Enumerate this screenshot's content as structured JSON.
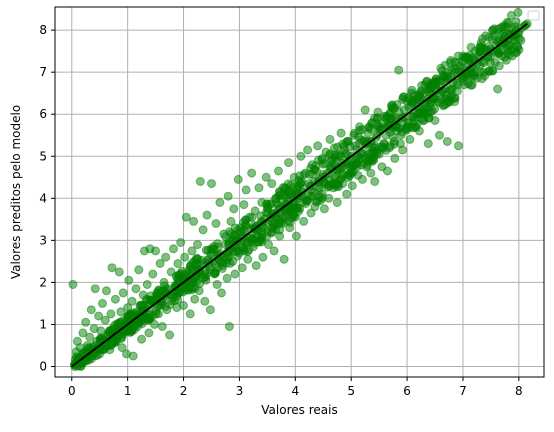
{
  "chart_data": {
    "type": "scatter",
    "title": "",
    "xlabel": "Valores reais",
    "ylabel": "Valores preditos pelo modelo",
    "xlim": [
      -0.3,
      8.45
    ],
    "ylim": [
      -0.25,
      8.55
    ],
    "xticks": [
      "0",
      "1",
      "2",
      "3",
      "4",
      "5",
      "6",
      "7",
      "8"
    ],
    "yticks": [
      "0",
      "1",
      "2",
      "3",
      "4",
      "5",
      "6",
      "7",
      "8"
    ],
    "grid": true,
    "legend": {
      "placement": "top-right",
      "entries": []
    },
    "colors": {
      "points": "#008000",
      "reference_line": "#000000",
      "grid": "#b0b0b0"
    },
    "series": [
      {
        "kind": "points",
        "points": [
          [
            0.02,
            1.95
          ],
          [
            0.05,
            0.05
          ],
          [
            0.08,
            0.35
          ],
          [
            0.1,
            0.6
          ],
          [
            0.12,
            0.2
          ],
          [
            0.15,
            0.45
          ],
          [
            0.18,
            0.1
          ],
          [
            0.2,
            0.8
          ],
          [
            0.22,
            0.3
          ],
          [
            0.25,
            1.05
          ],
          [
            0.28,
            0.5
          ],
          [
            0.3,
            0.15
          ],
          [
            0.32,
            0.7
          ],
          [
            0.35,
            1.35
          ],
          [
            0.38,
            0.4
          ],
          [
            0.4,
            0.9
          ],
          [
            0.42,
            1.85
          ],
          [
            0.45,
            0.6
          ],
          [
            0.48,
            1.2
          ],
          [
            0.5,
            0.3
          ],
          [
            0.52,
            0.85
          ],
          [
            0.55,
            1.5
          ],
          [
            0.58,
            0.55
          ],
          [
            0.6,
            1.1
          ],
          [
            0.62,
            1.8
          ],
          [
            0.65,
            0.75
          ],
          [
            0.68,
            0.4
          ],
          [
            0.7,
            1.25
          ],
          [
            0.72,
            2.35
          ],
          [
            0.75,
            0.9
          ],
          [
            0.78,
            1.6
          ],
          [
            0.8,
            0.6
          ],
          [
            0.82,
            1.0
          ],
          [
            0.85,
            2.25
          ],
          [
            0.88,
            1.3
          ],
          [
            0.9,
            0.45
          ],
          [
            0.92,
            1.75
          ],
          [
            0.95,
            1.05
          ],
          [
            0.98,
            0.3
          ],
          [
            1.0,
            1.4
          ],
          [
            1.02,
            2.05
          ],
          [
            1.05,
            0.85
          ],
          [
            1.08,
            1.55
          ],
          [
            1.1,
            0.25
          ],
          [
            1.12,
            1.2
          ],
          [
            1.15,
            1.85
          ],
          [
            1.18,
            0.95
          ],
          [
            1.2,
            2.3
          ],
          [
            1.22,
            1.45
          ],
          [
            1.25,
            0.65
          ],
          [
            1.28,
            1.7
          ],
          [
            1.3,
            2.75
          ],
          [
            1.32,
            1.15
          ],
          [
            1.35,
            1.95
          ],
          [
            1.38,
            0.8
          ],
          [
            1.4,
            2.8
          ],
          [
            1.42,
            1.5
          ],
          [
            1.45,
            2.2
          ],
          [
            1.48,
            1.0
          ],
          [
            1.5,
            2.75
          ],
          [
            1.52,
            1.75
          ],
          [
            1.55,
            1.25
          ],
          [
            1.58,
            2.45
          ],
          [
            1.6,
            1.55
          ],
          [
            1.62,
            0.95
          ],
          [
            1.65,
            2.0
          ],
          [
            1.68,
            2.6
          ],
          [
            1.7,
            1.35
          ],
          [
            1.72,
            1.85
          ],
          [
            1.75,
            0.75
          ],
          [
            1.78,
            2.25
          ],
          [
            1.8,
            1.65
          ],
          [
            1.82,
            2.8
          ],
          [
            1.85,
            1.9
          ],
          [
            1.88,
            1.4
          ],
          [
            1.9,
            2.45
          ],
          [
            1.92,
            1.75
          ],
          [
            1.95,
            2.95
          ],
          [
            1.98,
            2.1
          ],
          [
            2.0,
            1.45
          ],
          [
            2.02,
            2.6
          ],
          [
            2.05,
            3.55
          ],
          [
            2.08,
            1.9
          ],
          [
            2.1,
            2.3
          ],
          [
            2.12,
            1.25
          ],
          [
            2.15,
            2.75
          ],
          [
            2.18,
            3.45
          ],
          [
            2.2,
            1.6
          ],
          [
            2.22,
            2.15
          ],
          [
            2.25,
            2.9
          ],
          [
            2.28,
            1.8
          ],
          [
            2.3,
            4.4
          ],
          [
            2.32,
            2.4
          ],
          [
            2.35,
            3.25
          ],
          [
            2.38,
            1.55
          ],
          [
            2.4,
            2.05
          ],
          [
            2.42,
            3.6
          ],
          [
            2.45,
            2.55
          ],
          [
            2.48,
            1.35
          ],
          [
            2.5,
            4.35
          ],
          [
            2.52,
            2.8
          ],
          [
            2.55,
            2.2
          ],
          [
            2.58,
            3.4
          ],
          [
            2.6,
            1.95
          ],
          [
            2.62,
            2.65
          ],
          [
            2.65,
            3.9
          ],
          [
            2.68,
            1.75
          ],
          [
            2.7,
            2.4
          ],
          [
            2.72,
            3.15
          ],
          [
            2.75,
            2.9
          ],
          [
            2.78,
            2.1
          ],
          [
            2.8,
            4.05
          ],
          [
            2.82,
            0.95
          ],
          [
            2.85,
            3.45
          ],
          [
            2.88,
            2.5
          ],
          [
            2.9,
            3.75
          ],
          [
            2.92,
            2.2
          ],
          [
            2.95,
            3.0
          ],
          [
            2.98,
            4.45
          ],
          [
            3.0,
            2.7
          ],
          [
            3.02,
            3.3
          ],
          [
            3.05,
            2.35
          ],
          [
            3.08,
            3.85
          ],
          [
            3.1,
            2.95
          ],
          [
            3.12,
            4.2
          ],
          [
            3.15,
            2.55
          ],
          [
            3.18,
            3.55
          ],
          [
            3.2,
            3.1
          ],
          [
            3.22,
            4.6
          ],
          [
            3.25,
            2.85
          ],
          [
            3.28,
            3.7
          ],
          [
            3.3,
            2.4
          ],
          [
            3.32,
            3.35
          ],
          [
            3.35,
            4.25
          ],
          [
            3.38,
            3.0
          ],
          [
            3.4,
            3.9
          ],
          [
            3.42,
            2.6
          ],
          [
            3.45,
            3.5
          ],
          [
            3.48,
            4.5
          ],
          [
            3.5,
            3.2
          ],
          [
            3.52,
            2.9
          ],
          [
            3.55,
            3.85
          ],
          [
            3.58,
            4.35
          ],
          [
            3.6,
            3.4
          ],
          [
            3.62,
            2.75
          ],
          [
            3.65,
            4.0
          ],
          [
            3.68,
            3.55
          ],
          [
            3.7,
            4.65
          ],
          [
            3.72,
            3.1
          ],
          [
            3.75,
            3.95
          ],
          [
            3.78,
            3.4
          ],
          [
            3.8,
            2.55
          ],
          [
            3.82,
            4.25
          ],
          [
            3.85,
            3.7
          ],
          [
            3.88,
            4.85
          ],
          [
            3.9,
            3.3
          ],
          [
            3.92,
            4.1
          ],
          [
            3.95,
            3.6
          ],
          [
            3.98,
            4.5
          ],
          [
            4.0,
            3.9
          ],
          [
            4.02,
            3.1
          ],
          [
            4.05,
            4.3
          ],
          [
            4.08,
            3.75
          ],
          [
            4.1,
            5.0
          ],
          [
            4.12,
            4.15
          ],
          [
            4.15,
            3.45
          ],
          [
            4.18,
            4.6
          ],
          [
            4.2,
            3.95
          ],
          [
            4.22,
            5.15
          ],
          [
            4.25,
            4.35
          ],
          [
            4.28,
            3.65
          ],
          [
            4.3,
            4.8
          ],
          [
            4.32,
            4.05
          ],
          [
            4.35,
            3.8
          ],
          [
            4.38,
            4.65
          ],
          [
            4.4,
            5.25
          ],
          [
            4.42,
            4.2
          ],
          [
            4.45,
            3.95
          ],
          [
            4.48,
            4.95
          ],
          [
            4.5,
            4.4
          ],
          [
            4.52,
            3.75
          ],
          [
            4.55,
            5.1
          ],
          [
            4.58,
            4.6
          ],
          [
            4.6,
            4.0
          ],
          [
            4.62,
            5.4
          ],
          [
            4.65,
            4.75
          ],
          [
            4.68,
            4.25
          ],
          [
            4.7,
            5.2
          ],
          [
            4.72,
            4.5
          ],
          [
            4.75,
            3.9
          ],
          [
            4.78,
            5.0
          ],
          [
            4.8,
            4.7
          ],
          [
            4.82,
            5.55
          ],
          [
            4.85,
            4.35
          ],
          [
            4.88,
            5.15
          ],
          [
            4.9,
            4.85
          ],
          [
            4.92,
            4.1
          ],
          [
            4.95,
            5.35
          ],
          [
            4.98,
            4.6
          ],
          [
            5.0,
            5.0
          ],
          [
            5.02,
            4.3
          ],
          [
            5.05,
            5.5
          ],
          [
            5.08,
            4.8
          ],
          [
            5.1,
            5.15
          ],
          [
            5.12,
            4.55
          ],
          [
            5.15,
            5.7
          ],
          [
            5.18,
            4.95
          ],
          [
            5.2,
            4.45
          ],
          [
            5.22,
            5.35
          ],
          [
            5.25,
            6.1
          ],
          [
            5.28,
            4.75
          ],
          [
            5.3,
            5.55
          ],
          [
            5.32,
            5.05
          ],
          [
            5.35,
            4.6
          ],
          [
            5.38,
            5.8
          ],
          [
            5.4,
            5.2
          ],
          [
            5.42,
            4.4
          ],
          [
            5.45,
            5.45
          ],
          [
            5.48,
            6.05
          ],
          [
            5.5,
            5.05
          ],
          [
            5.52,
            5.65
          ],
          [
            5.55,
            4.75
          ],
          [
            5.58,
            5.3
          ],
          [
            5.6,
            5.95
          ],
          [
            5.62,
            5.5
          ],
          [
            5.65,
            4.65
          ],
          [
            5.68,
            5.75
          ],
          [
            5.7,
            5.25
          ],
          [
            5.72,
            6.2
          ],
          [
            5.75,
            5.45
          ],
          [
            5.78,
            4.95
          ],
          [
            5.8,
            5.85
          ],
          [
            5.82,
            5.6
          ],
          [
            5.85,
            7.05
          ],
          [
            5.88,
            5.3
          ],
          [
            5.9,
            5.9
          ],
          [
            5.92,
            5.15
          ],
          [
            5.95,
            6.1
          ],
          [
            5.98,
            5.65
          ],
          [
            6.0,
            6.3
          ],
          [
            6.02,
            5.8
          ],
          [
            6.05,
            5.4
          ],
          [
            6.08,
            6.2
          ],
          [
            6.1,
            5.95
          ],
          [
            6.12,
            6.45
          ],
          [
            6.15,
            5.7
          ],
          [
            6.18,
            6.35
          ],
          [
            6.2,
            6.0
          ],
          [
            6.22,
            5.6
          ],
          [
            6.25,
            6.55
          ],
          [
            6.28,
            6.15
          ],
          [
            6.3,
            5.85
          ],
          [
            6.32,
            6.7
          ],
          [
            6.35,
            6.3
          ],
          [
            6.38,
            5.3
          ],
          [
            6.4,
            6.6
          ],
          [
            6.42,
            6.05
          ],
          [
            6.45,
            6.75
          ],
          [
            6.48,
            6.4
          ],
          [
            6.5,
            5.85
          ],
          [
            6.52,
            6.7
          ],
          [
            6.55,
            6.3
          ],
          [
            6.58,
            5.5
          ],
          [
            6.6,
            6.8
          ],
          [
            6.62,
            6.55
          ],
          [
            6.65,
            6.2
          ],
          [
            6.68,
            6.9
          ],
          [
            6.7,
            6.45
          ],
          [
            6.72,
            5.35
          ],
          [
            6.75,
            6.85
          ],
          [
            6.78,
            6.6
          ],
          [
            6.8,
            7.05
          ],
          [
            6.82,
            6.75
          ],
          [
            6.85,
            6.3
          ],
          [
            6.88,
            7.0
          ],
          [
            6.9,
            6.55
          ],
          [
            6.92,
            5.25
          ],
          [
            6.95,
            7.15
          ],
          [
            6.98,
            6.85
          ],
          [
            7.0,
            7.25
          ],
          [
            7.02,
            6.7
          ],
          [
            7.05,
            7.35
          ],
          [
            7.08,
            7.0
          ],
          [
            7.1,
            6.95
          ],
          [
            7.12,
            7.4
          ],
          [
            7.15,
            7.1
          ],
          [
            7.18,
            7.3
          ],
          [
            7.2,
            6.9
          ],
          [
            7.22,
            7.5
          ],
          [
            7.25,
            7.2
          ],
          [
            7.28,
            7.35
          ],
          [
            7.3,
            7.15
          ],
          [
            7.32,
            7.6
          ],
          [
            7.35,
            7.25
          ],
          [
            7.4,
            7.5
          ],
          [
            7.45,
            7.4
          ],
          [
            7.5,
            7.55
          ],
          [
            7.55,
            7.5
          ],
          [
            7.6,
            7.65
          ],
          [
            7.62,
            6.6
          ],
          [
            7.65,
            7.7
          ],
          [
            7.7,
            7.65
          ],
          [
            7.75,
            7.8
          ],
          [
            7.8,
            7.75
          ],
          [
            7.85,
            7.9
          ],
          [
            7.9,
            7.85
          ],
          [
            7.95,
            8.0
          ],
          [
            8.0,
            7.95
          ],
          [
            8.05,
            8.05
          ],
          [
            8.1,
            8.1
          ],
          [
            8.12,
            8.12
          ],
          [
            8.15,
            8.15
          ]
        ]
      },
      {
        "kind": "reference_line",
        "x": [
          0,
          8.15
        ],
        "y": [
          0,
          8.15
        ]
      }
    ]
  }
}
